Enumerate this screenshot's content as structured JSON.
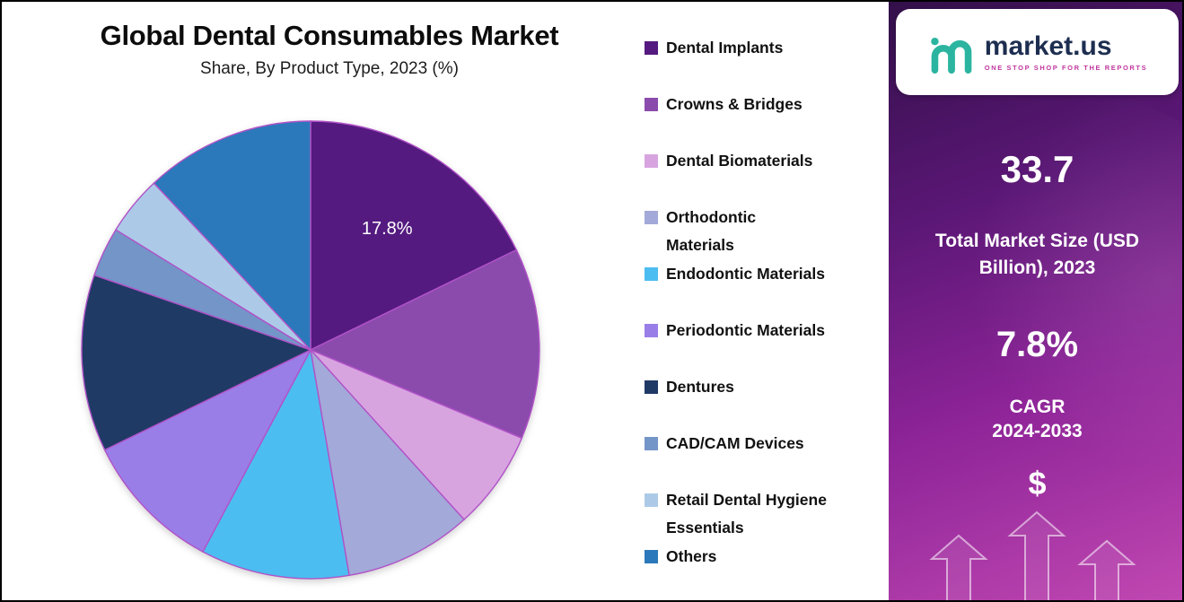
{
  "title": "Global Dental Consumables Market",
  "subtitle": "Share, By Product Type, 2023 (%)",
  "chart_data": {
    "type": "pie",
    "title": "Global Dental Consumables Market",
    "subtitle": "Share, By Product Type, 2023 (%)",
    "legend_position": "right",
    "stroke_color": "#b152c8",
    "slices": [
      {
        "label": "Dental Implants",
        "value": 17.8,
        "value_label": "17.8%",
        "color": "#541a80"
      },
      {
        "label": "Crowns & Bridges",
        "value": 13.5,
        "color": "#8b4bad"
      },
      {
        "label": "Dental Biomaterials",
        "value": 7.0,
        "color": "#d8a4e0"
      },
      {
        "label": "Orthodontic Materials",
        "label_lines": [
          "Orthodontic",
          "Materials"
        ],
        "value": 9.0,
        "color": "#a3a9d8"
      },
      {
        "label": "Endodontic Materials",
        "value": 10.5,
        "color": "#4cbdf0"
      },
      {
        "label": "Periodontic Materials",
        "value": 10.0,
        "color": "#9a7ee8"
      },
      {
        "label": "Dentures",
        "value": 12.5,
        "color": "#203a66"
      },
      {
        "label": "CAD/CAM Devices",
        "value": 3.5,
        "color": "#7495c8"
      },
      {
        "label": "Retail Dental Hygiene Essentials",
        "label_lines": [
          "Retail Dental Hygiene",
          "Essentials"
        ],
        "value": 4.2,
        "color": "#accae8"
      },
      {
        "label": "Others",
        "value": 12.0,
        "color": "#2b79ba"
      }
    ]
  },
  "side_panel": {
    "brand": {
      "name": "market.us",
      "tagline": "ONE STOP SHOP FOR THE REPORTS"
    },
    "market_size_value": "33.7",
    "market_size_label": "Total Market Size (USD Billion), 2023",
    "cagr_value": "7.8%",
    "cagr_label": "CAGR",
    "cagr_period": "2024-2033",
    "currency_symbol": "$",
    "colors": {
      "logo_teal": "#2bb5a0",
      "logo_text": "#1d2e50",
      "tagline": "#c1379f"
    }
  }
}
